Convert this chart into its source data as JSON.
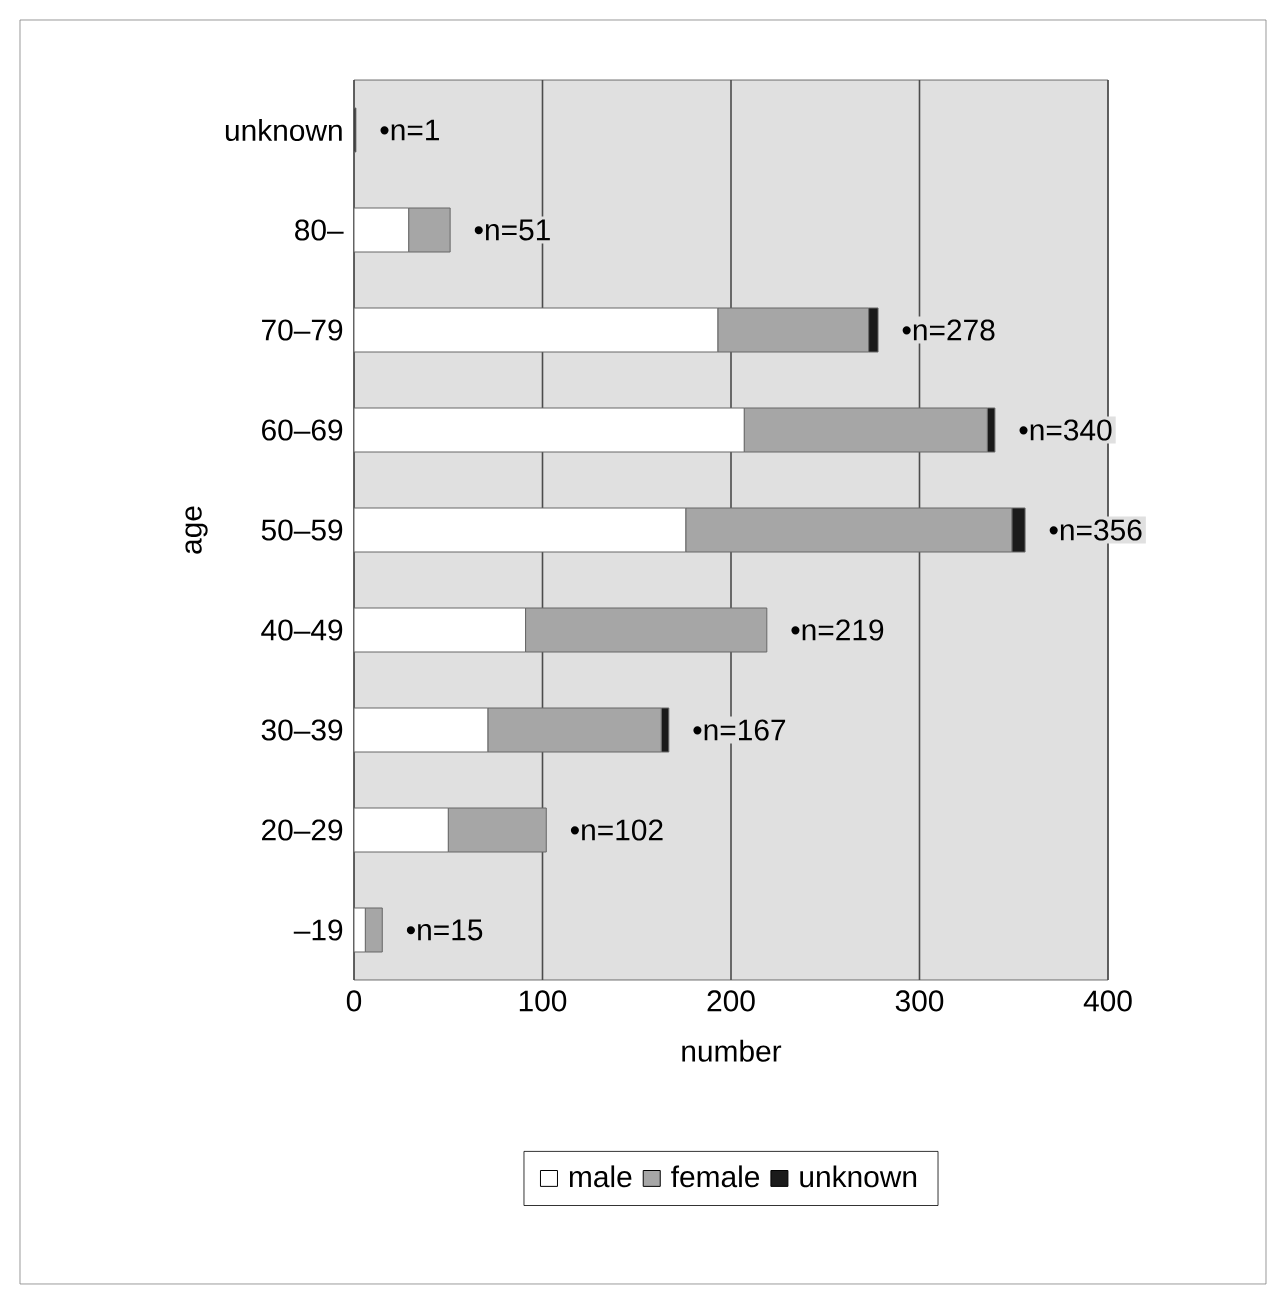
{
  "chart_data": {
    "type": "bar",
    "orientation": "horizontal",
    "stacked": true,
    "xlabel": "number",
    "ylabel": "age",
    "categories": [
      "unknown",
      "80–",
      "70–79",
      "60–69",
      "50–59",
      "40–49",
      "30–39",
      "20–29",
      "–19"
    ],
    "series": [
      {
        "name": "male",
        "color": "#ffffff",
        "values": [
          0,
          29,
          193,
          207,
          176,
          91,
          71,
          50,
          6
        ]
      },
      {
        "name": "female",
        "color": "#a6a6a6",
        "values": [
          0,
          22,
          80,
          129,
          173,
          128,
          92,
          52,
          9
        ]
      },
      {
        "name": "unknown",
        "color": "#1a1a1a",
        "values": [
          1,
          0,
          5,
          4,
          7,
          0,
          4,
          0,
          0
        ]
      }
    ],
    "totals": [
      "•n=1",
      "•n=51",
      "•n=278",
      "•n=340",
      "•n=356",
      "•n=219",
      "•n=167",
      "•n=102",
      "•n=15"
    ],
    "xlim": [
      0,
      400
    ],
    "xticks": [
      0,
      100,
      200,
      300,
      400
    ],
    "grid": "x",
    "legend": "bottom"
  }
}
